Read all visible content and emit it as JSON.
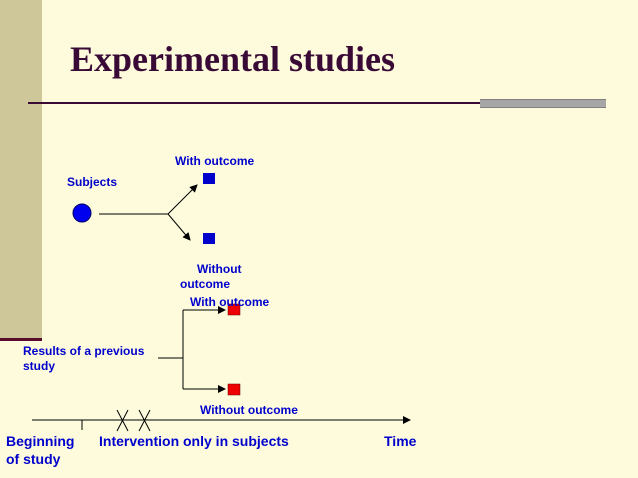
{
  "slide": {
    "title": "Experimental studies"
  },
  "cohort": {
    "subjects_label": "Subjects",
    "with_outcome_label": "With outcome",
    "without_outcome_line1": "Without",
    "without_outcome_line2": "outcome"
  },
  "historical": {
    "results_line1": "Results of a previous",
    "results_line2": "study",
    "with_outcome_label": "With outcome",
    "without_outcome_label": "Without outcome"
  },
  "timeline": {
    "start_line1": "Beginning",
    "start_line2": "of study",
    "intervention_label": "Intervention only in subjects",
    "end_label": "Time"
  },
  "colors": {
    "subjects": "#0000ee",
    "cohort_outcome": "#0000cc",
    "historical_outcome": "#ee0000",
    "label_text": "#0000cc",
    "title_text": "#3a0a36"
  }
}
